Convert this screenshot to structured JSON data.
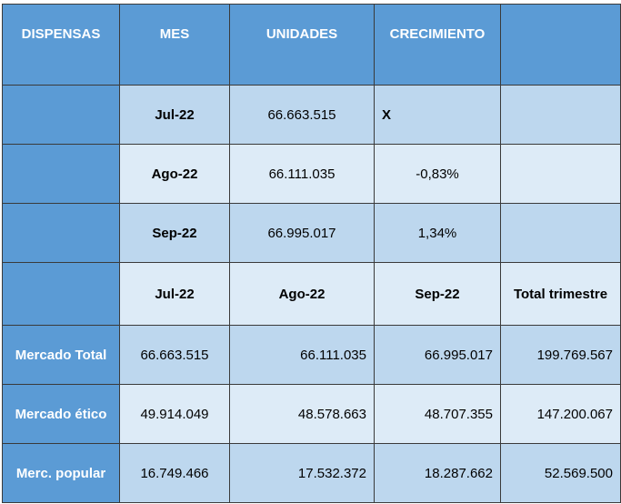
{
  "header": {
    "col1": "DISPENSAS",
    "col2": "MES",
    "col3": "UNIDADES",
    "col4": "CRECIMIENTO",
    "col5": ""
  },
  "monthly_rows": [
    {
      "label": "",
      "mes": "Jul-22",
      "unidades": "66.663.515",
      "crecimiento": "X"
    },
    {
      "label": "",
      "mes": "Ago-22",
      "unidades": "66.111.035",
      "crecimiento": "-0,83%"
    },
    {
      "label": "",
      "mes": "Sep-22",
      "unidades": "66.995.017",
      "crecimiento": "1,34%"
    }
  ],
  "summary_header": {
    "label": "",
    "m1": "Jul-22",
    "m2": "Ago-22",
    "m3": "Sep-22",
    "total": "Total trimestre"
  },
  "summary_rows": [
    {
      "label": "Mercado Total",
      "v1": "66.663.515",
      "v2": "66.111.035",
      "v3": "66.995.017",
      "total": "199.769.567"
    },
    {
      "label": "Mercado ético",
      "v1": "49.914.049",
      "v2": "48.578.663",
      "v3": "48.707.355",
      "total": "147.200.067"
    },
    {
      "label": "Merc. popular",
      "v1": "16.749.466",
      "v2": "17.532.372",
      "v3": "18.287.662",
      "total": "52.569.500"
    }
  ]
}
